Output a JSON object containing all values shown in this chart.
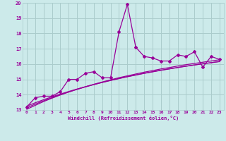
{
  "xlabel": "Windchill (Refroidissement éolien,°C)",
  "background_color": "#cceaea",
  "grid_color": "#aacccc",
  "line_color": "#990099",
  "xlim": [
    -0.5,
    23.5
  ],
  "ylim": [
    13,
    20
  ],
  "xticks": [
    0,
    1,
    2,
    3,
    4,
    5,
    6,
    7,
    8,
    9,
    10,
    11,
    12,
    13,
    14,
    15,
    16,
    17,
    18,
    19,
    20,
    21,
    22,
    23
  ],
  "yticks": [
    13,
    14,
    15,
    16,
    17,
    18,
    19,
    20
  ],
  "data_y": [
    13.2,
    13.8,
    13.9,
    13.9,
    14.2,
    15.0,
    15.0,
    15.4,
    15.5,
    15.1,
    15.1,
    18.1,
    19.9,
    17.1,
    16.5,
    16.4,
    16.2,
    16.2,
    16.6,
    16.5,
    16.8,
    15.8,
    16.5,
    16.3
  ],
  "trend1_y": [
    13.15,
    13.38,
    13.6,
    13.8,
    14.0,
    14.18,
    14.35,
    14.51,
    14.66,
    14.8,
    14.93,
    15.06,
    15.18,
    15.29,
    15.4,
    15.5,
    15.6,
    15.69,
    15.78,
    15.86,
    15.94,
    16.02,
    16.09,
    16.16
  ],
  "trend2_y": [
    13.25,
    13.47,
    13.67,
    13.86,
    14.04,
    14.21,
    14.37,
    14.52,
    14.66,
    14.8,
    14.93,
    15.05,
    15.17,
    15.28,
    15.39,
    15.49,
    15.59,
    15.68,
    15.77,
    15.86,
    15.94,
    16.02,
    16.09,
    16.17
  ],
  "trend3_y": [
    13.05,
    13.3,
    13.55,
    13.77,
    13.98,
    14.17,
    14.35,
    14.52,
    14.68,
    14.83,
    14.97,
    15.11,
    15.23,
    15.35,
    15.47,
    15.57,
    15.68,
    15.77,
    15.87,
    15.96,
    16.04,
    16.12,
    16.2,
    16.28
  ]
}
